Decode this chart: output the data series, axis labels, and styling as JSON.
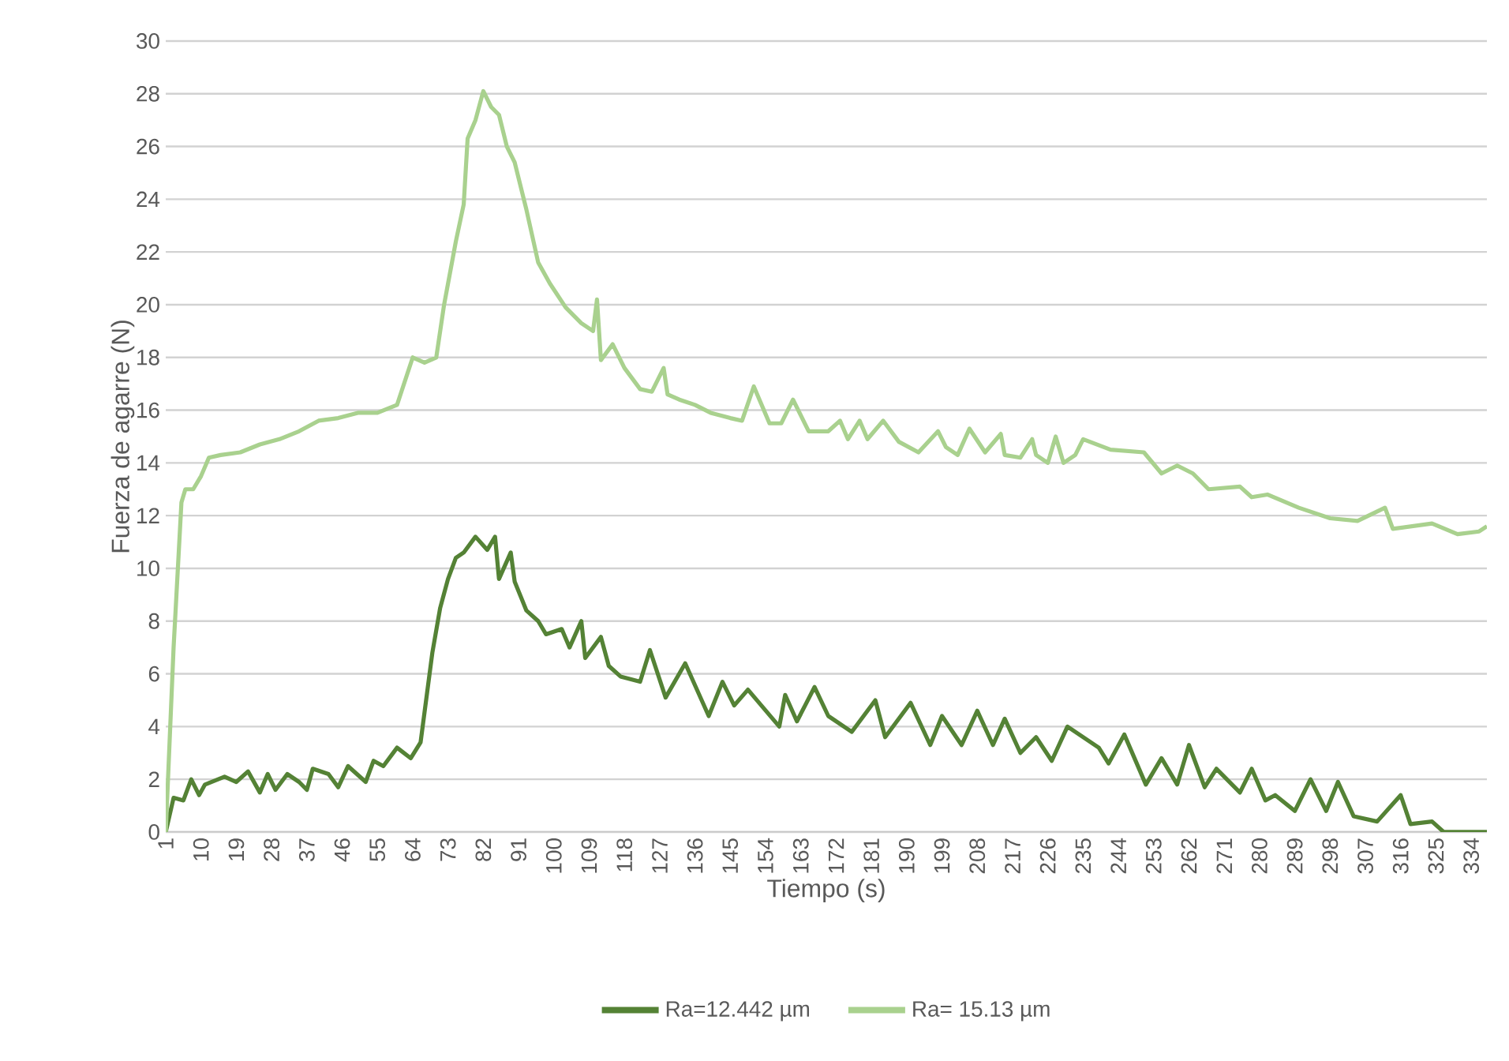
{
  "chart_data": {
    "type": "line",
    "xlabel": "Tiempo (s)",
    "ylabel": "Fuerza de agarre (N)",
    "xlim": [
      1,
      338
    ],
    "xticks": [
      1,
      10,
      19,
      28,
      37,
      46,
      55,
      64,
      73,
      82,
      91,
      100,
      109,
      118,
      127,
      136,
      145,
      154,
      163,
      172,
      181,
      190,
      199,
      208,
      217,
      226,
      235,
      244,
      253,
      262,
      271,
      280,
      289,
      298,
      307,
      316,
      325,
      334
    ],
    "ylim": [
      0,
      30
    ],
    "yticks": [
      0,
      2,
      4,
      6,
      8,
      10,
      12,
      14,
      16,
      18,
      20,
      22,
      24,
      26,
      28,
      30
    ],
    "grid": "y",
    "legend": "bottom",
    "marker": "none",
    "line_style": "solid",
    "series": [
      {
        "name": "Ra=12.442 µm",
        "color": "#548235",
        "x": [
          1,
          3,
          5.5,
          7.5,
          9.5,
          11,
          16,
          19,
          22,
          25,
          27,
          29,
          32,
          35,
          37,
          38.5,
          42.5,
          45,
          47.5,
          52,
          54,
          56.5,
          60,
          63.5,
          66,
          69,
          71,
          73,
          75,
          77,
          80,
          83,
          85,
          86,
          89,
          90,
          93,
          96,
          98,
          102,
          104,
          107,
          108,
          112,
          114,
          117,
          122,
          124.5,
          128.5,
          133.5,
          139.5,
          143,
          146,
          149.5,
          157.5,
          159,
          162,
          166.5,
          170,
          176,
          182,
          184.5,
          191,
          196,
          199,
          204,
          208,
          212,
          215,
          219,
          223,
          227,
          231,
          239,
          241.5,
          245.5,
          251,
          255,
          259,
          262,
          266,
          269,
          275,
          278,
          281.5,
          284,
          289,
          293,
          297,
          300,
          304,
          310,
          316,
          318.5,
          324,
          327,
          338
        ],
        "values": [
          0,
          1.3,
          1.2,
          2.0,
          1.4,
          1.8,
          2.1,
          1.9,
          2.3,
          1.5,
          2.2,
          1.6,
          2.2,
          1.9,
          1.6,
          2.4,
          2.2,
          1.7,
          2.5,
          1.9,
          2.7,
          2.5,
          3.2,
          2.8,
          3.4,
          6.8,
          8.5,
          9.6,
          10.4,
          10.6,
          11.2,
          10.7,
          11.2,
          9.6,
          10.6,
          9.5,
          8.4,
          8.0,
          7.5,
          7.7,
          7.0,
          8.0,
          6.6,
          7.4,
          6.3,
          5.9,
          5.7,
          6.9,
          5.1,
          6.4,
          4.4,
          5.7,
          4.8,
          5.4,
          4.0,
          5.2,
          4.2,
          5.5,
          4.4,
          3.8,
          5.0,
          3.6,
          4.9,
          3.3,
          4.4,
          3.3,
          4.6,
          3.3,
          4.3,
          3.0,
          3.6,
          2.7,
          4.0,
          3.2,
          2.6,
          3.7,
          1.8,
          2.8,
          1.8,
          3.3,
          1.7,
          2.4,
          1.5,
          2.4,
          1.2,
          1.4,
          0.8,
          2.0,
          0.8,
          1.9,
          0.6,
          0.4,
          1.4,
          0.3,
          0.4,
          0,
          0
        ]
      },
      {
        "name": "Ra= 15.13 µm",
        "color": "#a9d18e",
        "x": [
          1,
          3,
          5,
          6,
          8,
          10,
          12,
          15,
          20,
          25,
          30,
          35,
          40,
          45,
          50,
          55,
          60,
          64,
          67,
          70,
          72,
          75,
          77,
          78,
          80,
          82,
          84,
          86,
          88,
          90,
          93,
          96,
          99,
          103,
          107,
          110,
          111,
          112,
          115,
          118,
          122,
          125,
          128,
          129,
          132,
          136,
          140,
          145,
          148,
          151,
          155,
          158,
          161,
          165,
          170,
          173,
          175,
          178,
          180,
          184,
          188,
          193,
          198,
          200,
          203,
          206,
          210,
          214,
          215,
          219,
          222,
          223,
          226,
          228,
          230,
          233,
          235,
          242,
          250.5,
          255,
          259,
          263,
          267,
          275,
          278,
          282,
          290,
          298,
          305,
          312,
          314,
          324,
          330.5,
          336,
          338
        ],
        "values": [
          0,
          7,
          12.5,
          13,
          13.0,
          13.5,
          14.2,
          14.3,
          14.4,
          14.7,
          14.9,
          15.2,
          15.6,
          15.7,
          15.9,
          15.9,
          16.2,
          18.0,
          17.8,
          18.0,
          20,
          22.4,
          23.8,
          26.3,
          27,
          28.1,
          27.5,
          27.2,
          26,
          25.4,
          23.6,
          21.6,
          20.8,
          19.9,
          19.3,
          19.0,
          20.2,
          17.9,
          18.5,
          17.6,
          16.8,
          16.7,
          17.6,
          16.6,
          16.4,
          16.2,
          15.9,
          15.7,
          15.6,
          16.9,
          15.5,
          15.5,
          16.4,
          15.2,
          15.2,
          15.6,
          14.9,
          15.6,
          14.9,
          15.6,
          14.8,
          14.4,
          15.2,
          14.6,
          14.3,
          15.3,
          14.4,
          15.1,
          14.3,
          14.2,
          14.9,
          14.3,
          14.0,
          15.0,
          14.0,
          14.3,
          14.9,
          14.5,
          14.4,
          13.6,
          13.9,
          13.6,
          13.0,
          13.1,
          12.7,
          12.8,
          12.3,
          11.9,
          11.8,
          12.3,
          11.5,
          11.7,
          11.3,
          11.4,
          11.6
        ]
      }
    ]
  }
}
